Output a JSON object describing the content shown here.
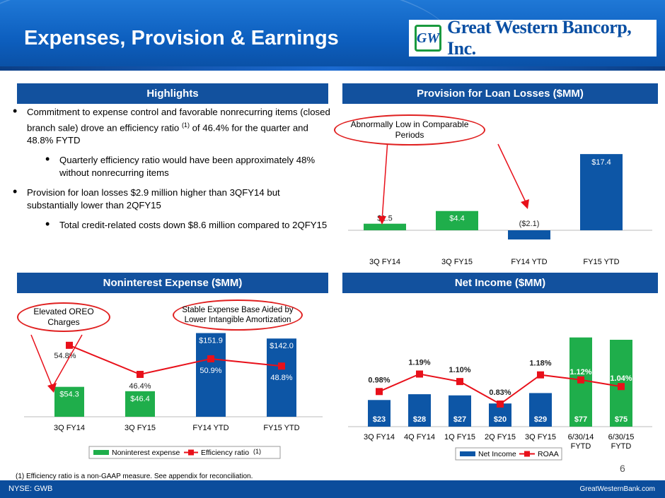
{
  "header": {
    "title": "Expenses, Provision & Earnings",
    "logo_text": "Great Western Bancorp, Inc.",
    "logo_mark": "GW"
  },
  "sections": {
    "highlights": "Highlights",
    "provision": "Provision for Loan Losses ($MM)",
    "nonint": "Noninterest Expense ($MM)",
    "netinc": "Net Income ($MM)"
  },
  "bullets": {
    "b1_pre": "Commitment to expense control and favorable nonrecurring items (closed branch sale) drove an efficiency ratio ",
    "b1_sup": "(1)",
    "b1_post": " of 46.4% for the quarter and 48.8% FYTD",
    "b1_sub": "Quarterly efficiency ratio would have been approximately 48% without nonrecurring items",
    "b2": "Provision for loan losses $2.9 million higher than 3QFY14 but substantially lower than 2QFY15",
    "b2_sub": "Total credit-related costs down $8.6 million compared to 2QFY15"
  },
  "callouts": {
    "provision": "Abnormally Low in Comparable Periods",
    "oreo": "Elevated OREO Charges",
    "stable": "Stable Expense Base Aided by Lower Intangible Amortization"
  },
  "colors": {
    "green": "#1fae4b",
    "blue": "#0d56a6",
    "red": "#e8101a",
    "band": "#12519e"
  },
  "chart_data": [
    {
      "type": "bar",
      "id": "provision",
      "categories": [
        "3Q FY14",
        "3Q FY15",
        "FY14 YTD",
        "FY15 YTD"
      ],
      "values": [
        1.5,
        4.4,
        -2.1,
        17.4
      ],
      "labels": [
        "$1.5",
        "$4.4",
        "($2.1)",
        "$17.4"
      ],
      "bar_colors": [
        "green",
        "green",
        "blue",
        "blue"
      ]
    },
    {
      "type": "bar",
      "id": "nonint",
      "categories": [
        "3Q FY14",
        "3Q FY15",
        "FY14 YTD",
        "FY15 YTD"
      ],
      "series": [
        {
          "name": "Noninterest expense",
          "values": [
            54.3,
            46.4,
            151.9,
            142.0
          ],
          "labels": [
            "$54.3",
            "$46.4",
            "$151.9",
            "$142.0"
          ]
        },
        {
          "name": "Efficiency ratio",
          "values": [
            54.8,
            46.4,
            50.9,
            48.8
          ],
          "labels": [
            "54.8%",
            "46.4%",
            "50.9%",
            "48.8%"
          ]
        }
      ],
      "bar_colors": [
        "green",
        "green",
        "blue",
        "blue"
      ],
      "legend": [
        "Noninterest expense",
        "Efficiency ratio"
      ],
      "legend_sup": "(1)"
    },
    {
      "type": "bar",
      "id": "netinc",
      "categories": [
        "3Q FY14",
        "4Q FY14",
        "1Q FY15",
        "2Q FY15",
        "3Q FY15",
        "6/30/14 FYTD",
        "6/30/15 FYTD"
      ],
      "series": [
        {
          "name": "Net Income",
          "values": [
            23,
            28,
            27,
            20,
            29,
            77,
            75
          ],
          "labels": [
            "$23",
            "$28",
            "$27",
            "$20",
            "$29",
            "$77",
            "$75"
          ]
        },
        {
          "name": "ROAA",
          "values": [
            0.98,
            1.19,
            1.1,
            0.83,
            1.18,
            1.12,
            1.04
          ],
          "labels": [
            "0.98%",
            "1.19%",
            "1.10%",
            "0.83%",
            "1.18%",
            "1.12%",
            "1.04%"
          ]
        }
      ],
      "bar_colors": [
        "blue",
        "blue",
        "blue",
        "blue",
        "blue",
        "green",
        "green"
      ],
      "legend": [
        "Net Income",
        "ROAA"
      ]
    }
  ],
  "footnote": "(1) Efficiency ratio is a non-GAAP measure.  See appendix for reconciliation.",
  "page_number": "6",
  "footer": {
    "left": "NYSE: GWB",
    "right": "GreatWesternBank.com"
  }
}
